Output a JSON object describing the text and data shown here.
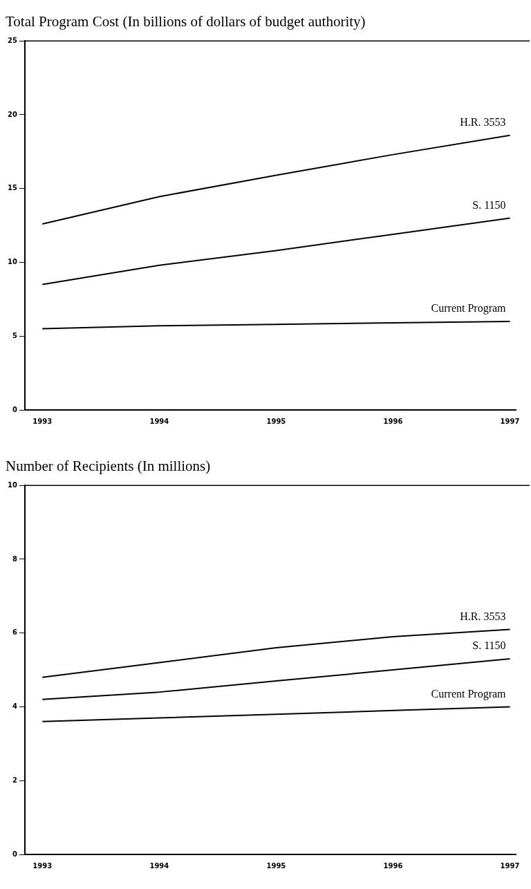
{
  "chart_data": [
    {
      "type": "line",
      "title": "Total Program Cost (In billions of dollars of budget authority)",
      "x": [
        1993,
        1994,
        1995,
        1996,
        1997
      ],
      "xlim": [
        1992.85,
        1997.05
      ],
      "xticks": [
        1993,
        1994,
        1995,
        1996,
        1997
      ],
      "ylim": [
        0,
        25
      ],
      "yticks": [
        0,
        5,
        10,
        15,
        20,
        25
      ],
      "grid": false,
      "legend": false,
      "marker": "none",
      "line_style": "solid",
      "series": [
        {
          "name": "H.R. 3553",
          "color": "#000000",
          "values": [
            12.6,
            14.45,
            15.9,
            17.3,
            18.6
          ]
        },
        {
          "name": "S. 1150",
          "color": "#000000",
          "values": [
            8.5,
            9.8,
            10.8,
            11.9,
            13.0
          ]
        },
        {
          "name": "Current Program",
          "color": "#000000",
          "values": [
            5.5,
            5.7,
            5.8,
            5.9,
            6.0
          ]
        }
      ]
    },
    {
      "type": "line",
      "title": "Number of Recipients (In millions)",
      "x": [
        1993,
        1994,
        1995,
        1996,
        1997
      ],
      "xlim": [
        1992.85,
        1997.05
      ],
      "xticks": [
        1993,
        1994,
        1995,
        1996,
        1997
      ],
      "ylim": [
        0,
        10
      ],
      "yticks": [
        0,
        2,
        4,
        6,
        8,
        10
      ],
      "grid": false,
      "legend": false,
      "marker": "none",
      "line_style": "solid",
      "series": [
        {
          "name": "H.R. 3553",
          "color": "#000000",
          "values": [
            4.8,
            5.2,
            5.6,
            5.9,
            6.1
          ]
        },
        {
          "name": "S. 1150",
          "color": "#000000",
          "values": [
            4.2,
            4.4,
            4.7,
            5.0,
            5.3
          ]
        },
        {
          "name": "Current Program",
          "color": "#000000",
          "values": [
            3.6,
            3.7,
            3.8,
            3.9,
            4.0
          ]
        }
      ]
    }
  ]
}
